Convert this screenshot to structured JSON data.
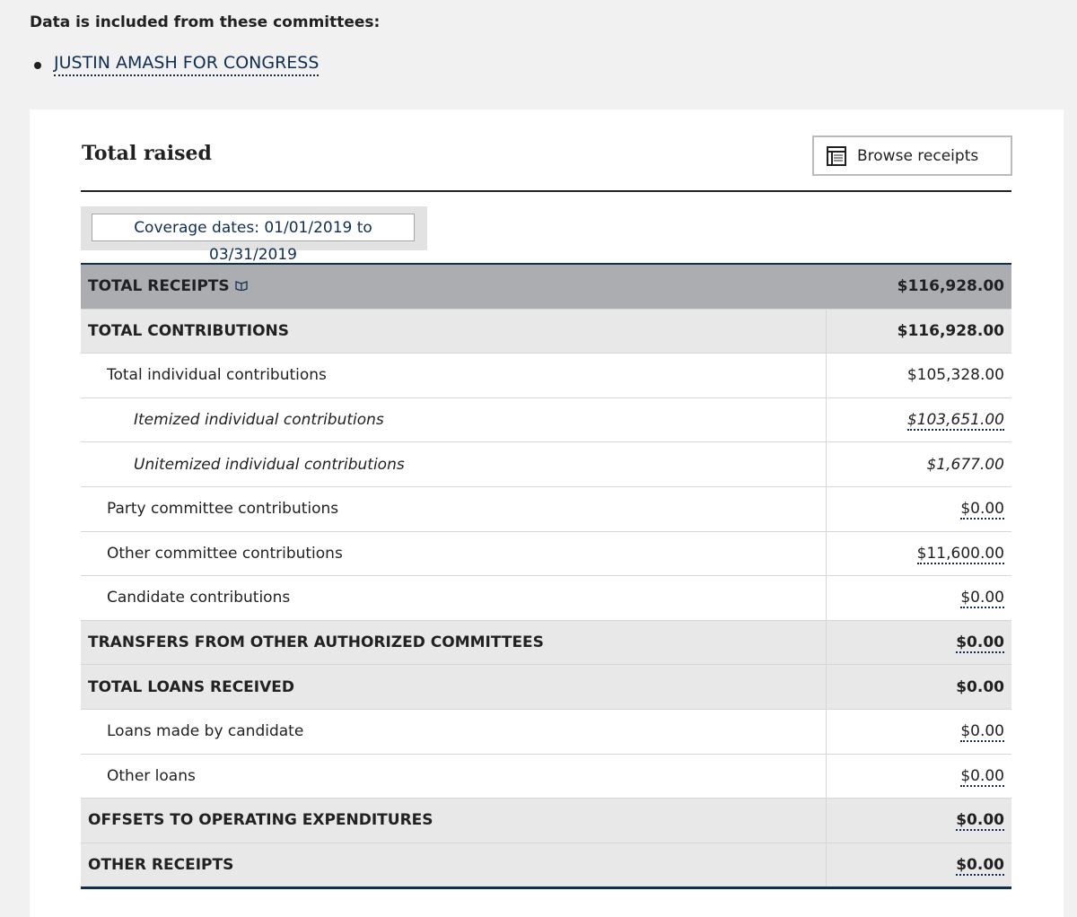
{
  "header": {
    "label": "Data is included from these committees:",
    "committees": [
      "JUSTIN AMASH FOR CONGRESS"
    ]
  },
  "panel": {
    "title": "Total raised",
    "button": "Browse receipts",
    "coverage": "Coverage dates: 01/01/2019 to 03/31/2019"
  },
  "table": {
    "rows": [
      [
        "TOTAL RECEIPTS",
        "$116,928.00"
      ],
      [
        "TOTAL CONTRIBUTIONS",
        "$116,928.00"
      ],
      [
        "Total individual contributions",
        "$105,328.00"
      ],
      [
        "Itemized individual contributions",
        "$103,651.00"
      ],
      [
        "Unitemized individual contributions",
        "$1,677.00"
      ],
      [
        "Party committee contributions",
        "$0.00"
      ],
      [
        "Other committee contributions",
        "$11,600.00"
      ],
      [
        "Candidate contributions",
        "$0.00"
      ],
      [
        "TRANSFERS FROM OTHER AUTHORIZED COMMITTEES",
        "$0.00"
      ],
      [
        "TOTAL LOANS RECEIVED",
        "$0.00"
      ],
      [
        "Loans made by candidate",
        "$0.00"
      ],
      [
        "Other loans",
        "$0.00"
      ],
      [
        "OFFSETS TO OPERATING EXPENDITURES",
        "$0.00"
      ],
      [
        "OTHER RECEIPTS",
        "$0.00"
      ]
    ]
  }
}
